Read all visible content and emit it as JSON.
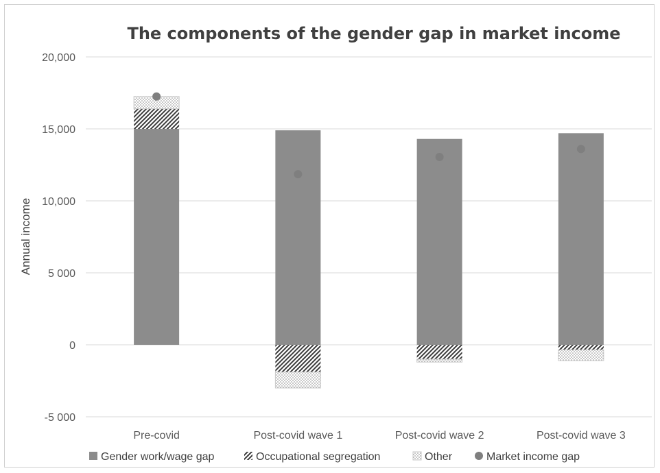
{
  "chart_data": {
    "type": "bar",
    "stacked": true,
    "title": "The components of the gender gap in market income",
    "ylabel": "Annual income",
    "xlabel": "",
    "ylim": [
      -5000,
      20000
    ],
    "y_ticks": [
      {
        "value": 20000,
        "label": "20,000"
      },
      {
        "value": 15000,
        "label": "15,000"
      },
      {
        "value": 10000,
        "label": "10,000"
      },
      {
        "value": 5000,
        "label": "5 000"
      },
      {
        "value": 0,
        "label": "0"
      },
      {
        "value": -5000,
        "label": "-5 000"
      }
    ],
    "grid": true,
    "legend_position": "bottom",
    "categories": [
      "Pre-covid",
      "Post-covid wave 1",
      "Post-covid wave 2",
      "Post-covid wave 3"
    ],
    "series": [
      {
        "name": "Gender work/wage gap",
        "type": "bar",
        "pattern": "solid",
        "color": "#8c8c8c",
        "values": [
          15000,
          14900,
          14300,
          14700
        ]
      },
      {
        "name": "Occupational segregation",
        "type": "bar",
        "pattern": "hatch",
        "color": "#404040",
        "values": [
          1400,
          -1900,
          -1000,
          -350
        ]
      },
      {
        "name": "Other",
        "type": "bar",
        "pattern": "dots",
        "color": "#a0a0a0",
        "values": [
          850,
          -1100,
          -200,
          -750
        ]
      },
      {
        "name": "Market income gap",
        "type": "marker",
        "color": "#7f7f7f",
        "values": [
          17250,
          11850,
          13050,
          13600
        ]
      }
    ]
  }
}
